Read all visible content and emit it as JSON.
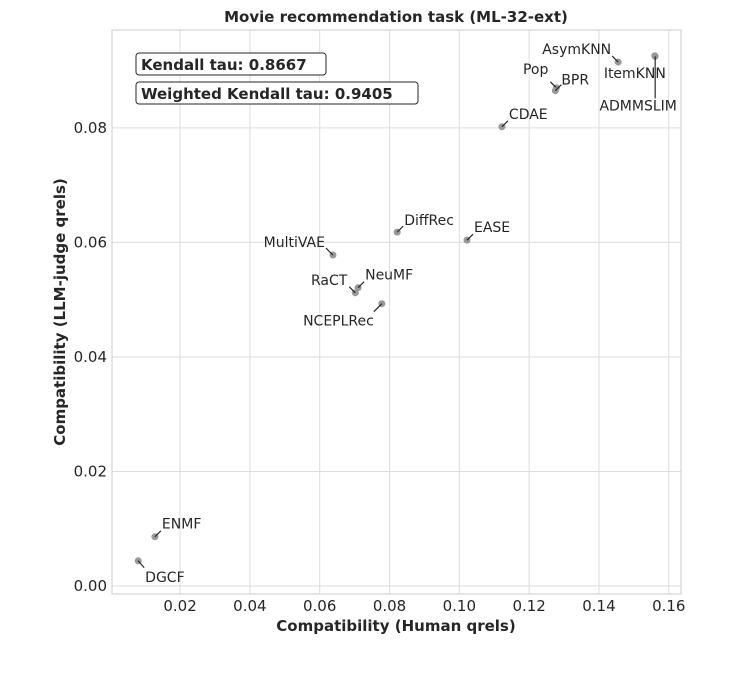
{
  "chart_data": {
    "type": "scatter",
    "title": "Movie recommendation task (ML-32-ext)",
    "xlabel": "Compatibility (Human qrels)",
    "ylabel": "Compatibility (LLM-judge qrels)",
    "xlim": [
      0.0005,
      0.1635
    ],
    "ylim": [
      -0.0014,
      0.0971
    ],
    "xticks": [
      0.02,
      0.04,
      0.06,
      0.08,
      0.1,
      0.12,
      0.14,
      0.16
    ],
    "xtick_labels": [
      "0.02",
      "0.04",
      "0.06",
      "0.08",
      "0.10",
      "0.12",
      "0.14",
      "0.16"
    ],
    "yticks": [
      0.0,
      0.02,
      0.04,
      0.06,
      0.08
    ],
    "ytick_labels": [
      "0.00",
      "0.02",
      "0.04",
      "0.06",
      "0.08"
    ],
    "grid": true,
    "point_color": "#999999",
    "points": [
      {
        "label": "AsymKNN",
        "x": 0.1455,
        "y": 0.0915
      },
      {
        "label": "ItemKNN",
        "x": 0.156,
        "y": 0.0926
      },
      {
        "label": "ADMMSLIM",
        "x": 0.1561,
        "y": 0.0925
      },
      {
        "label": "Pop",
        "x": 0.1278,
        "y": 0.087
      },
      {
        "label": "BPR",
        "x": 0.1275,
        "y": 0.0865
      },
      {
        "label": "CDAE",
        "x": 0.1122,
        "y": 0.0802
      },
      {
        "label": "DiffRec",
        "x": 0.0822,
        "y": 0.0618
      },
      {
        "label": "EASE",
        "x": 0.1022,
        "y": 0.0604
      },
      {
        "label": "MultiVAE",
        "x": 0.0638,
        "y": 0.0578
      },
      {
        "label": "NeuMF",
        "x": 0.071,
        "y": 0.0521
      },
      {
        "label": "RaCT",
        "x": 0.0702,
        "y": 0.0512
      },
      {
        "label": "NCEPLRec",
        "x": 0.0778,
        "y": 0.0493
      },
      {
        "label": "ENMF",
        "x": 0.0128,
        "y": 0.0086
      },
      {
        "label": "DGCF",
        "x": 0.008,
        "y": 0.0044
      }
    ],
    "annotations": [
      "Kendall tau: 0.8667",
      "Weighted Kendall tau: 0.9405"
    ]
  }
}
